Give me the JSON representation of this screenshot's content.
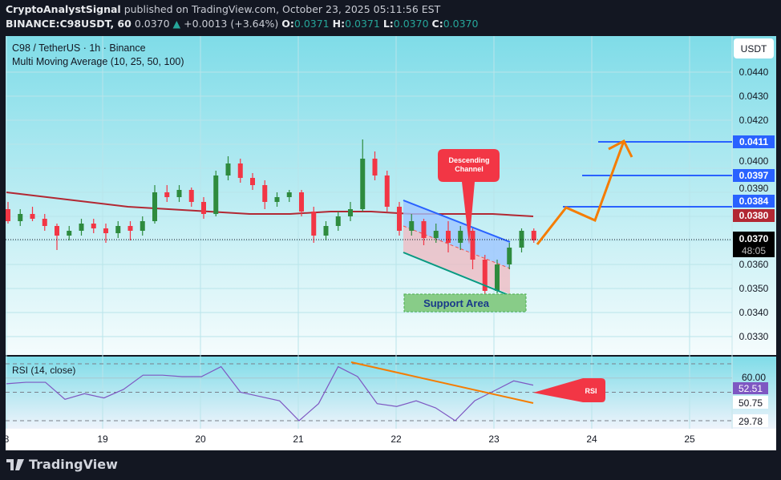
{
  "header": {
    "author": "CryptoAnalystSignal",
    "published_text": "published on TradingView.com, October 23, 2025 05:11:56 EST",
    "symbol": "BINANCE:C98USDT, 60",
    "last": "0.0370",
    "change": "+0.0013 (+3.64%)",
    "o_label": "O:",
    "o": "0.0371",
    "h_label": "H:",
    "h": "0.0371",
    "l_label": "L:",
    "l": "0.0370",
    "c_label": "C:",
    "c": "0.0370"
  },
  "legend": {
    "title": "C98 / TetherUS · 1h · Binance",
    "indicator": "Multi Moving Average (10, 25, 50, 100)",
    "rsi": "RSI (14, close)"
  },
  "price_axis": {
    "currency": "USDT",
    "ticks": [
      "0.0440",
      "0.0430",
      "0.0420",
      "0.0400",
      "0.0390",
      "0.0360",
      "0.0350",
      "0.0340",
      "0.0330"
    ],
    "tags": [
      {
        "value": "0.0411",
        "color": "#2962ff"
      },
      {
        "value": "0.0397",
        "color": "#2962ff"
      },
      {
        "value": "0.0384",
        "color": "#2962ff"
      },
      {
        "value": "0.0380",
        "color": "#b22833"
      }
    ],
    "last_price": "0.0370",
    "countdown": "48:05"
  },
  "rsi_axis": {
    "upper": "60.00",
    "value": "52.51",
    "mid": "50.75",
    "lower": "29.78",
    "value_color": "#7e57c2"
  },
  "time_axis": [
    "8",
    "19",
    "20",
    "21",
    "22",
    "23",
    "24",
    "25"
  ],
  "annotations": {
    "channel": "Descending Channel",
    "support": "Support Area",
    "rsi": "RSI"
  },
  "footer": {
    "brand": "TradingView"
  },
  "chart_data": {
    "type": "candlestick",
    "ylim": [
      0.0325,
      0.0455
    ],
    "candles": [
      [
        "18 00:00",
        0.0383,
        0.0386,
        0.0377,
        0.0378
      ],
      [
        "18 03:00",
        0.0378,
        0.0383,
        0.0376,
        0.0381
      ],
      [
        "18 06:00",
        0.0381,
        0.0384,
        0.0378,
        0.0379
      ],
      [
        "18 09:00",
        0.0379,
        0.0381,
        0.0374,
        0.0376
      ],
      [
        "18 12:00",
        0.0376,
        0.0377,
        0.0366,
        0.0372
      ],
      [
        "18 15:00",
        0.0372,
        0.0376,
        0.037,
        0.0374
      ],
      [
        "18 18:00",
        0.0374,
        0.0379,
        0.0372,
        0.0377
      ],
      [
        "18 21:00",
        0.0377,
        0.0379,
        0.0373,
        0.0375
      ],
      [
        "19 00:00",
        0.0375,
        0.0377,
        0.0369,
        0.0373
      ],
      [
        "19 03:00",
        0.0373,
        0.0378,
        0.0371,
        0.0376
      ],
      [
        "19 06:00",
        0.0376,
        0.0378,
        0.037,
        0.0374
      ],
      [
        "19 09:00",
        0.0374,
        0.038,
        0.0372,
        0.0378
      ],
      [
        "19 12:00",
        0.0378,
        0.0393,
        0.0377,
        0.039
      ],
      [
        "19 15:00",
        0.039,
        0.0393,
        0.0386,
        0.0388
      ],
      [
        "19 18:00",
        0.0388,
        0.0393,
        0.0386,
        0.0391
      ],
      [
        "19 21:00",
        0.0391,
        0.0392,
        0.0384,
        0.0386
      ],
      [
        "20 00:00",
        0.0386,
        0.0388,
        0.0379,
        0.0381
      ],
      [
        "20 03:00",
        0.0381,
        0.0399,
        0.038,
        0.0397
      ],
      [
        "20 06:00",
        0.0397,
        0.0405,
        0.0395,
        0.0402
      ],
      [
        "20 09:00",
        0.0402,
        0.0404,
        0.0394,
        0.0396
      ],
      [
        "20 12:00",
        0.0396,
        0.0398,
        0.0391,
        0.0393
      ],
      [
        "20 15:00",
        0.0393,
        0.0395,
        0.0383,
        0.0386
      ],
      [
        "20 18:00",
        0.0386,
        0.039,
        0.0384,
        0.0388
      ],
      [
        "20 21:00",
        0.0388,
        0.0391,
        0.0386,
        0.039
      ],
      [
        "21 00:00",
        0.039,
        0.0391,
        0.038,
        0.0382
      ],
      [
        "21 03:00",
        0.0382,
        0.0384,
        0.0369,
        0.0372
      ],
      [
        "21 06:00",
        0.0372,
        0.0378,
        0.037,
        0.0376
      ],
      [
        "21 09:00",
        0.0376,
        0.0382,
        0.0374,
        0.038
      ],
      [
        "21 12:00",
        0.038,
        0.0386,
        0.0378,
        0.0383
      ],
      [
        "21 15:00",
        0.0383,
        0.0412,
        0.0382,
        0.0404
      ],
      [
        "21 18:00",
        0.0404,
        0.0407,
        0.0395,
        0.0397
      ],
      [
        "21 21:00",
        0.0397,
        0.0399,
        0.0382,
        0.0384
      ],
      [
        "22 00:00",
        0.0384,
        0.0386,
        0.0372,
        0.0374
      ],
      [
        "22 03:00",
        0.0374,
        0.0381,
        0.0372,
        0.0378
      ],
      [
        "22 06:00",
        0.0378,
        0.0379,
        0.0368,
        0.0371
      ],
      [
        "22 09:00",
        0.0371,
        0.0377,
        0.0369,
        0.0374
      ],
      [
        "22 12:00",
        0.0374,
        0.0378,
        0.0365,
        0.0369
      ],
      [
        "22 15:00",
        0.0369,
        0.0376,
        0.0366,
        0.0374
      ],
      [
        "22 18:00",
        0.0374,
        0.0375,
        0.0358,
        0.0362
      ],
      [
        "22 21:00",
        0.0362,
        0.0364,
        0.0343,
        0.0349
      ],
      [
        "23 00:00",
        0.0349,
        0.0362,
        0.0348,
        0.036
      ],
      [
        "23 03:00",
        0.036,
        0.0369,
        0.0358,
        0.0367
      ],
      [
        "23 06:00",
        0.0367,
        0.0375,
        0.0365,
        0.0374
      ],
      [
        "23 09:00",
        0.0374,
        0.0375,
        0.0369,
        0.037
      ]
    ],
    "moving_average": [
      0.039,
      0.0388,
      0.0386,
      0.0384,
      0.0383,
      0.0382,
      0.0381,
      0.0381,
      0.0382,
      0.0382,
      0.0381,
      0.0381,
      0.0381,
      0.038
    ],
    "rsi": [
      56,
      57,
      57,
      45,
      49,
      46,
      52,
      62,
      62,
      61,
      61,
      68,
      50,
      47,
      44,
      30,
      42,
      68,
      61,
      42,
      40,
      44,
      39,
      30,
      44,
      51,
      58,
      55
    ],
    "rsi_levels": [
      70,
      50,
      30
    ],
    "targets": [
      0.0384,
      0.0397,
      0.0411
    ]
  }
}
